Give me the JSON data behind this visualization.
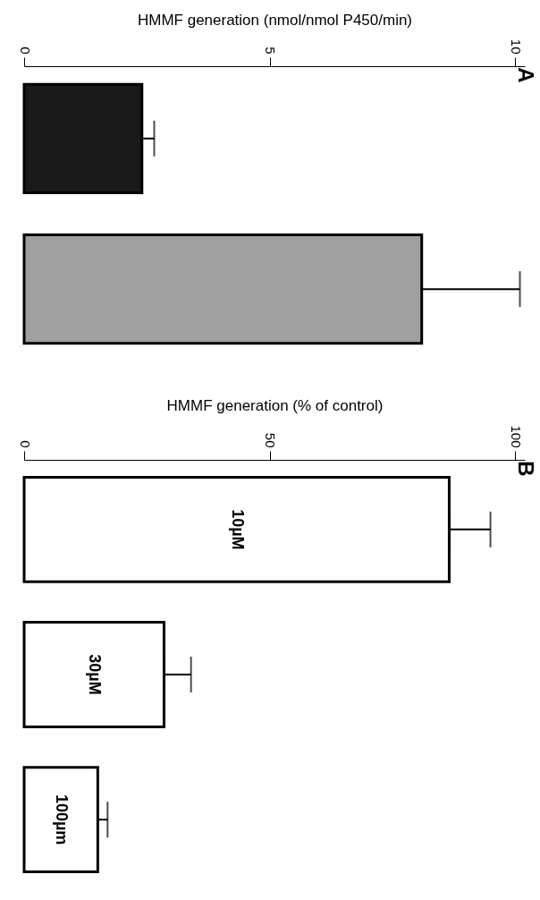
{
  "chart_data": [
    {
      "type": "bar",
      "orientation": "horizontal",
      "xlabel": "HMMF generation (nmol/nmol P450/min)",
      "categories": [
        null,
        null
      ],
      "values": [
        2.4,
        8.1
      ],
      "colors": [
        "#1a1a1a",
        "#a0a0a0"
      ],
      "errors": [
        [
          2.4,
          2.65
        ],
        [
          8.1,
          10.1
        ]
      ],
      "xlim": [
        0,
        10.2
      ],
      "xticks": [
        0,
        5,
        10
      ],
      "annotations": [
        "A"
      ]
    },
    {
      "type": "bar",
      "orientation": "horizontal",
      "xlabel": "HMMF generation (% of control)",
      "categories": [
        "10µM",
        "30µM",
        "100µm"
      ],
      "values": [
        86.6,
        28.5,
        15
      ],
      "colors": [
        "#ffffff",
        "#ffffff",
        "#ffffff"
      ],
      "errors": [
        [
          86.6,
          95
        ],
        [
          28.5,
          34
        ],
        [
          15,
          17
        ]
      ],
      "xlim": [
        0,
        102
      ],
      "xticks": [
        0,
        50,
        100
      ],
      "annotations": [
        "B"
      ]
    }
  ]
}
